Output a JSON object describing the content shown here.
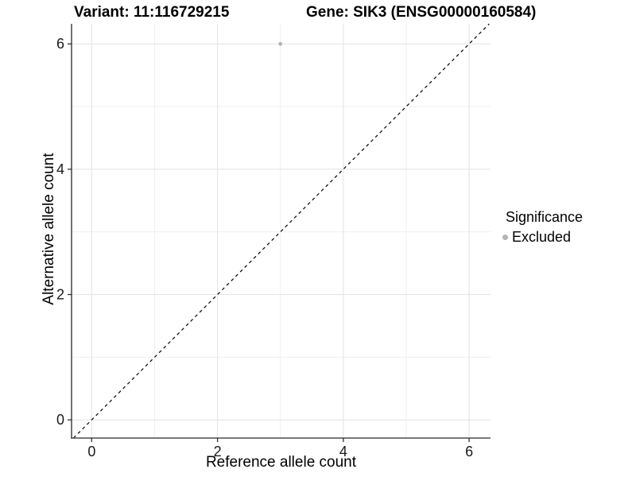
{
  "chart_data": {
    "type": "scatter",
    "title_left": "Variant: 11:116729215",
    "title_right": "Gene: SIK3 (ENSG00000160584)",
    "xlabel": "Reference allele count",
    "ylabel": "Alternative allele count",
    "xlim": [
      -0.32,
      6.34
    ],
    "ylim": [
      -0.29,
      6.32
    ],
    "x_major_ticks": [
      0,
      2,
      4,
      6
    ],
    "y_major_ticks": [
      0,
      2,
      4,
      6
    ],
    "x_minor_gridlines": [
      1,
      3,
      5
    ],
    "y_minor_gridlines": [
      1,
      3,
      5
    ],
    "grid": true,
    "identity_line": {
      "style": "dashed",
      "slope": 1,
      "intercept": 0,
      "color": "#000000"
    },
    "series": [
      {
        "name": "Excluded",
        "color": "#b3b3b3",
        "points": [
          {
            "x": 3,
            "y": 6
          }
        ]
      }
    ],
    "legend": {
      "position": "right",
      "title": "Significance",
      "entries": [
        {
          "label": "Excluded",
          "color": "#b3b3b3",
          "marker": "circle"
        }
      ]
    },
    "colors": {
      "background": "#ffffff",
      "axis_line": "#4d4d4d",
      "tick_mark": "#333333",
      "tick_text": "#1a1a1a",
      "grid_major": "#e5e5e5",
      "grid_minor": "#f0f0f0"
    }
  }
}
